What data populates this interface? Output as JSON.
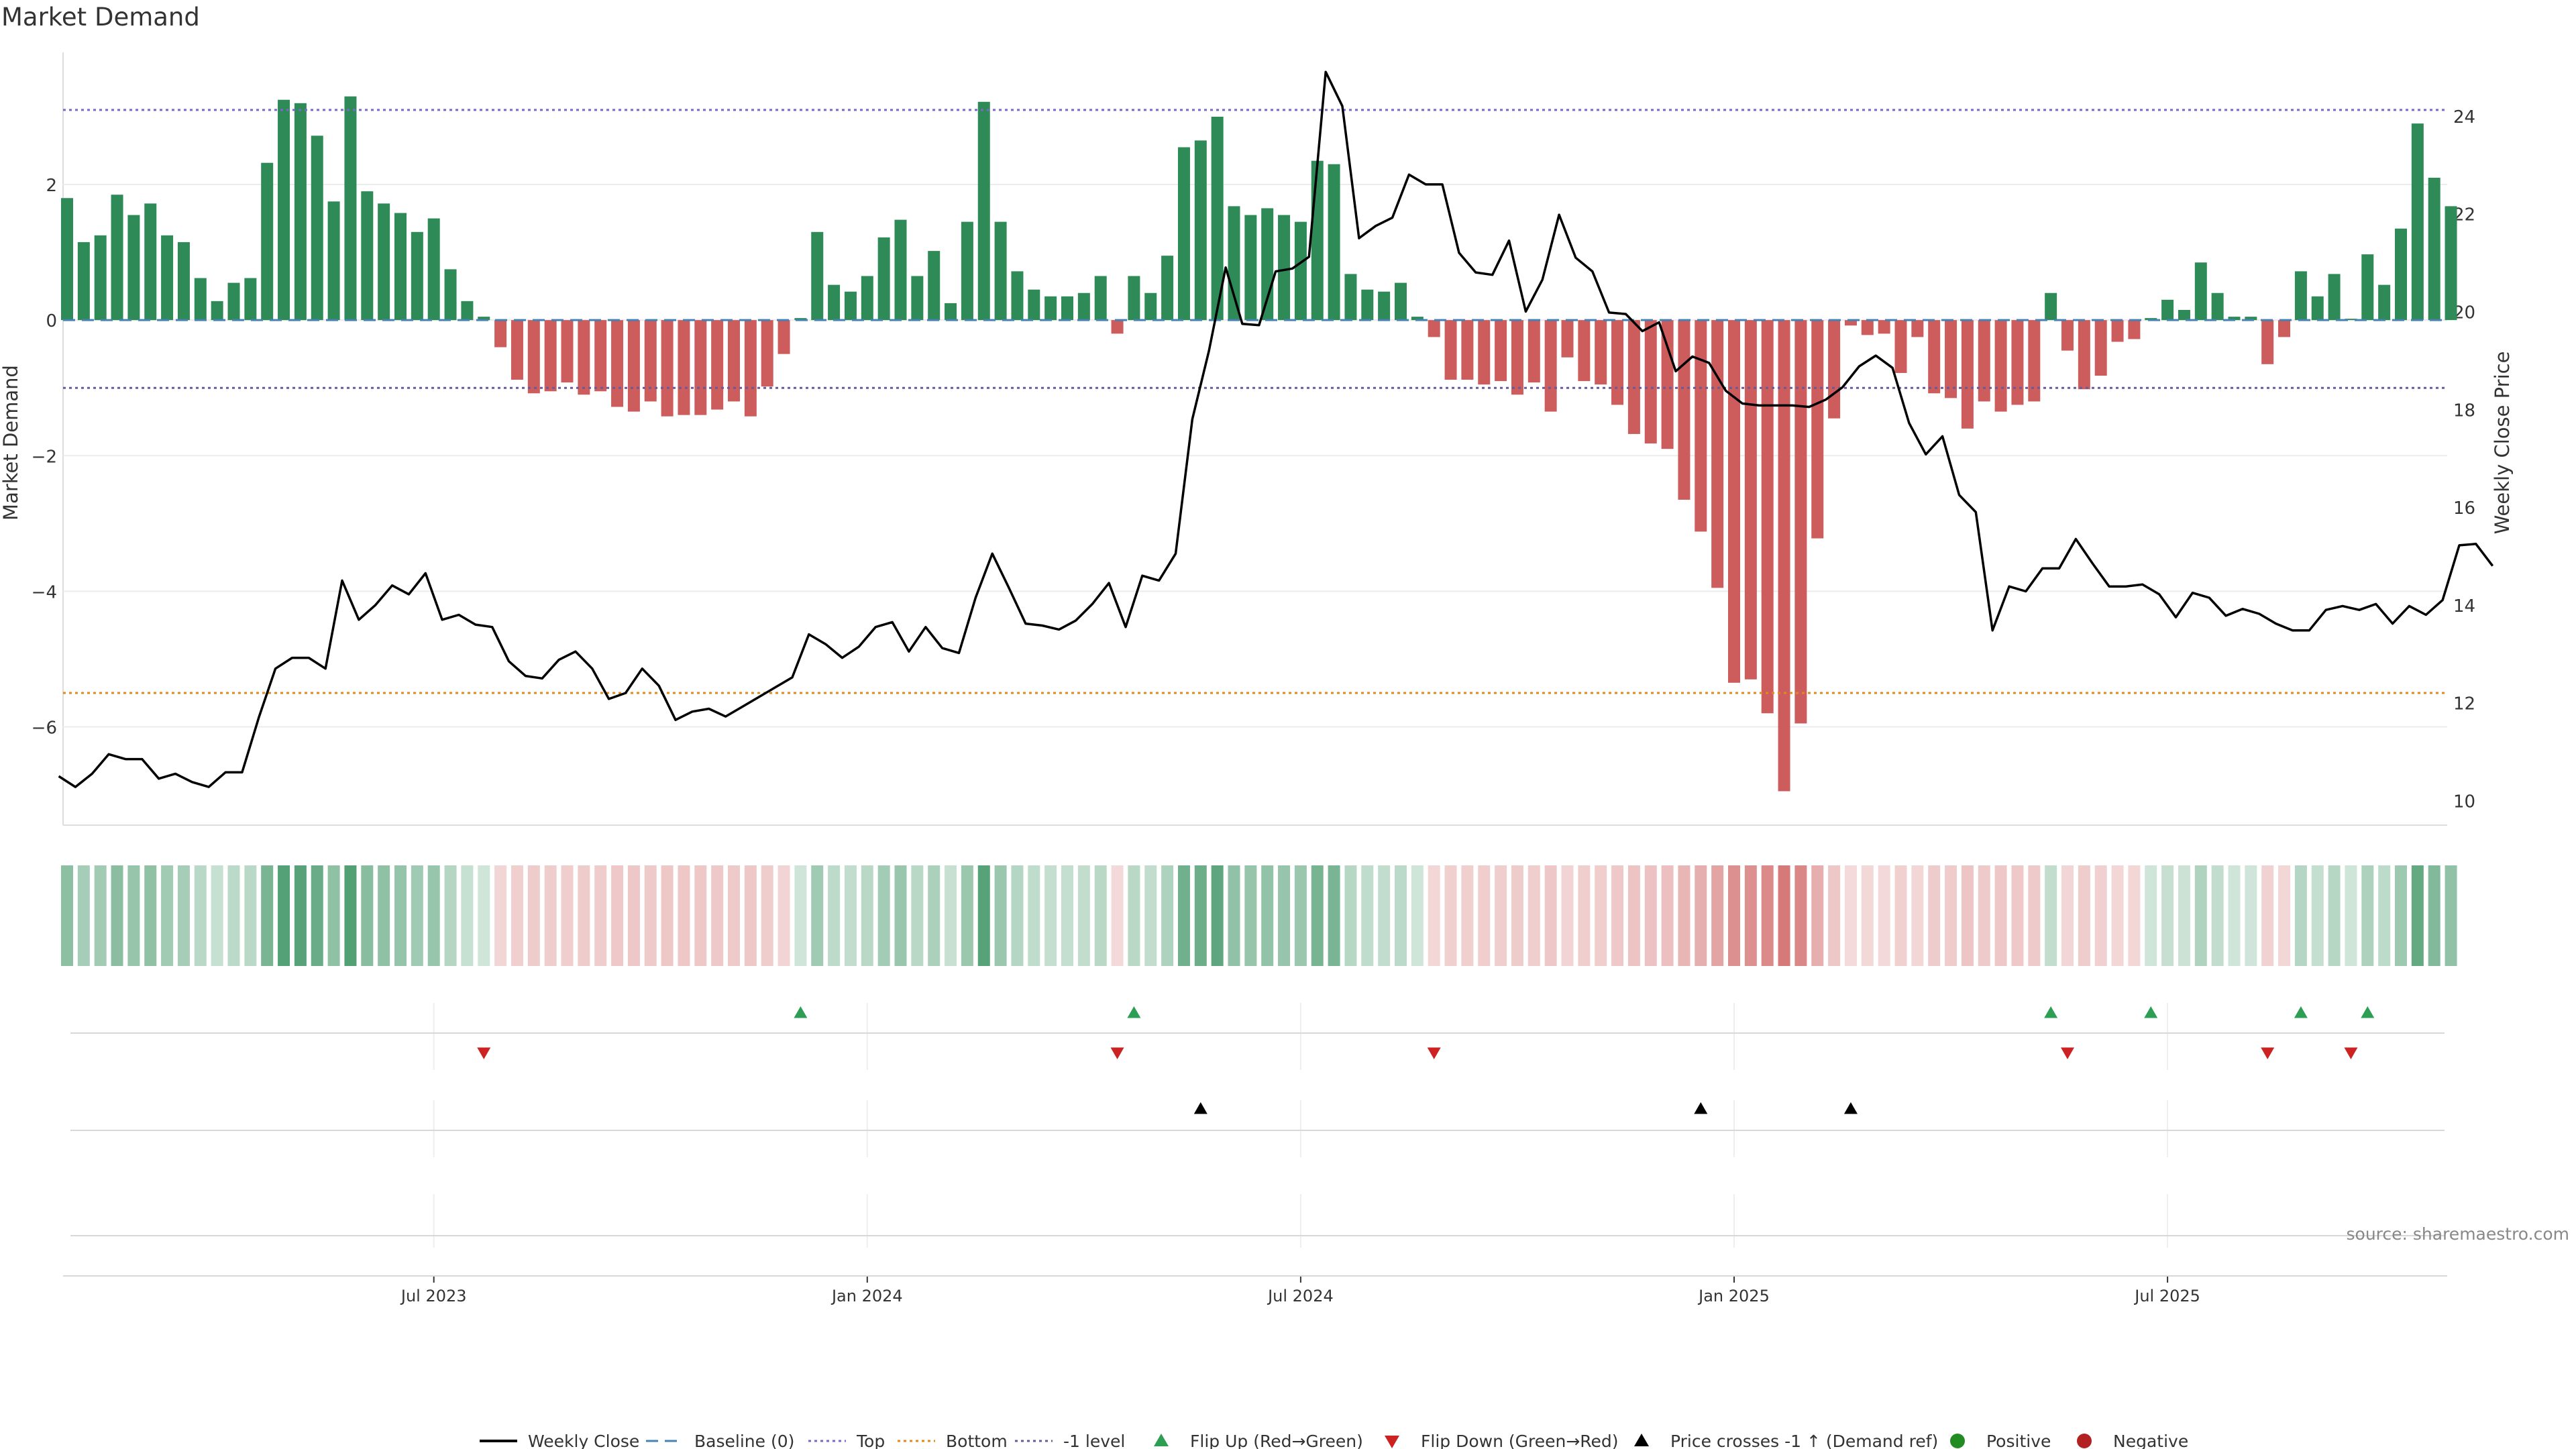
{
  "chart_data": {
    "type": "bar+line",
    "title": "Market Demand",
    "ylabel_left": "Market Demand",
    "ylabel_right": "Weekly Close Price",
    "source": "source: sharemaestro.com",
    "left_axis": {
      "ylim": [
        -7.45,
        3.95
      ],
      "ticks": [
        2,
        0,
        -2,
        -4,
        -6
      ]
    },
    "right_axis": {
      "ylim": [
        9.5,
        25.3
      ],
      "ticks": [
        24,
        22,
        20,
        18,
        16,
        14,
        12,
        10
      ]
    },
    "reference_lines": {
      "top": 3.1,
      "bottom": -5.5,
      "minus_one": -1.0,
      "baseline": 0
    },
    "x_ticks": [
      {
        "index": 22,
        "label": "Jul 2023"
      },
      {
        "index": 48,
        "label": "Jan 2024"
      },
      {
        "index": 74,
        "label": "Jul 2024"
      },
      {
        "index": 100,
        "label": "Jan 2025"
      },
      {
        "index": 126,
        "label": "Jul 2025"
      }
    ],
    "demand": [
      1.8,
      1.15,
      1.25,
      1.85,
      1.55,
      1.72,
      1.25,
      1.15,
      0.62,
      0.28,
      0.55,
      0.62,
      2.32,
      3.25,
      3.2,
      2.72,
      1.75,
      3.3,
      1.9,
      1.72,
      1.58,
      1.3,
      1.5,
      0.75,
      0.28,
      0.05,
      -0.4,
      -0.88,
      -1.08,
      -1.05,
      -0.92,
      -1.1,
      -1.05,
      -1.28,
      -1.35,
      -1.2,
      -1.42,
      -1.4,
      -1.4,
      -1.32,
      -1.2,
      -1.42,
      -0.98,
      -0.5,
      0.03,
      1.3,
      0.52,
      0.42,
      0.65,
      1.22,
      1.48,
      0.65,
      1.02,
      0.25,
      1.45,
      3.22,
      1.45,
      0.72,
      0.45,
      0.35,
      0.35,
      0.4,
      0.65,
      -0.2,
      0.65,
      0.4,
      0.95,
      2.55,
      2.65,
      3.0,
      1.68,
      1.55,
      1.65,
      1.55,
      1.45,
      2.35,
      2.3,
      0.68,
      0.45,
      0.42,
      0.55,
      0.05,
      -0.25,
      -0.88,
      -0.88,
      -0.95,
      -0.9,
      -1.1,
      -0.92,
      -1.35,
      -0.55,
      -0.9,
      -0.95,
      -1.25,
      -1.68,
      -1.82,
      -1.9,
      -2.65,
      -3.12,
      -3.95,
      -5.35,
      -5.3,
      -5.8,
      -6.95,
      -5.95,
      -3.22,
      -1.45,
      -0.08,
      -0.22,
      -0.2,
      -0.78,
      -0.25,
      -1.08,
      -1.15,
      -1.6,
      -1.2,
      -1.35,
      -1.25,
      -1.2,
      0.4,
      -0.45,
      -1.02,
      -0.82,
      -0.32,
      -0.28,
      0.03,
      0.3,
      0.15,
      0.85,
      0.4,
      0.05,
      0.05,
      -0.65,
      -0.25,
      0.72,
      0.35,
      0.68,
      0.02,
      0.97,
      0.52,
      1.35,
      2.9,
      2.1,
      1.68
    ],
    "weekly_close": [
      10.5,
      10.28,
      10.55,
      10.95,
      10.85,
      10.85,
      10.45,
      10.55,
      10.38,
      10.28,
      10.58,
      10.58,
      11.7,
      12.7,
      12.92,
      12.92,
      12.7,
      14.5,
      13.7,
      14.0,
      14.4,
      14.22,
      14.65,
      13.7,
      13.8,
      13.6,
      13.55,
      12.85,
      12.55,
      12.5,
      12.88,
      13.05,
      12.7,
      12.08,
      12.2,
      12.7,
      12.35,
      11.65,
      11.82,
      11.88,
      11.72,
      11.92,
      12.12,
      12.32,
      12.52,
      13.4,
      13.2,
      12.92,
      13.15,
      13.55,
      13.65,
      13.05,
      13.55,
      13.12,
      13.02,
      14.15,
      15.05,
      14.35,
      13.62,
      13.58,
      13.5,
      13.68,
      14.02,
      14.45,
      13.55,
      14.6,
      14.5,
      15.05,
      17.8,
      19.2,
      20.9,
      19.75,
      19.72,
      20.82,
      20.88,
      21.12,
      24.9,
      24.2,
      21.5,
      21.75,
      21.92,
      22.8,
      22.6,
      22.6,
      21.2,
      20.8,
      20.75,
      21.45,
      20.0,
      20.65,
      21.98,
      21.1,
      20.82,
      19.98,
      19.95,
      19.6,
      19.78,
      18.78,
      19.08,
      18.95,
      18.38,
      18.12,
      18.08,
      18.08,
      18.08,
      18.05,
      18.2,
      18.45,
      18.88,
      19.1,
      18.85,
      17.72,
      17.08,
      17.45,
      16.25,
      15.9,
      13.48,
      14.38,
      14.28,
      14.75,
      14.75,
      15.35,
      14.85,
      14.38,
      14.38,
      14.42,
      14.22,
      13.75,
      14.25,
      14.15,
      13.78,
      13.92,
      13.82,
      13.62,
      13.48,
      13.48,
      13.9,
      13.98,
      13.9,
      14.02,
      13.62,
      13.98,
      13.8,
      14.1,
      15.22,
      15.25,
      14.8
    ],
    "flip_up_indices": [
      44,
      64,
      119,
      125,
      134,
      138
    ],
    "flip_down_indices": [
      25,
      63,
      82,
      120,
      132,
      137
    ],
    "price_cross_indices": [
      68,
      98,
      107
    ],
    "legend": [
      {
        "key": "weekly",
        "label": "Weekly Close"
      },
      {
        "key": "baseline",
        "label": "Baseline (0)"
      },
      {
        "key": "top",
        "label": "Top"
      },
      {
        "key": "bottom",
        "label": "Bottom"
      },
      {
        "key": "minus1",
        "label": "-1 level"
      },
      {
        "key": "flipup",
        "label": "Flip Up (Red→Green)"
      },
      {
        "key": "flipdown",
        "label": "Flip Down (Green→Red)"
      },
      {
        "key": "cross",
        "label": "Price crosses -1 ↑ (Demand ref)"
      },
      {
        "key": "positive",
        "label": "Positive"
      },
      {
        "key": "negative",
        "label": "Negative"
      }
    ],
    "colors": {
      "positive": "#2e8b57",
      "negative": "#cd5c5c",
      "line": "#000000",
      "baseline": "#4682b4",
      "top": "#7b68c8",
      "bottom": "#e08a1e",
      "minus_one": "#6a5a9a",
      "flip_up": "#2e9e55",
      "flip_down": "#cc2222",
      "cross": "#000000",
      "legend_positive": "#228b22",
      "legend_negative": "#b22222"
    }
  }
}
